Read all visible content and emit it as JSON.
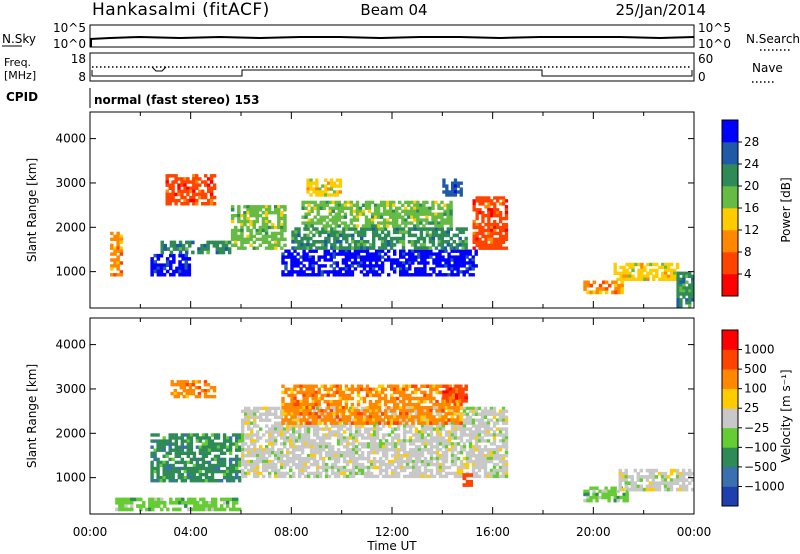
{
  "header": {
    "station": "Hankasalmi (fitACF)",
    "beam": "Beam 04",
    "date": "25/Jan/2014"
  },
  "noise_panel": {
    "left_label": "N.Sky",
    "right_label": "N.Search",
    "tick_top": "10^5",
    "tick_bottom": "10^0",
    "right_tick_top": "10^5",
    "right_tick_bottom": "10^0"
  },
  "freq_panel": {
    "label_top": "Freq.",
    "label_bottom": "[MHz]",
    "ticks_left": [
      "18",
      "8"
    ],
    "ticks_right": [
      "60",
      "0"
    ],
    "right_label": "Nave"
  },
  "cpid": {
    "label": "CPID",
    "mode": "normal (fast stereo) 153"
  },
  "power_colorbar": {
    "label": "Power [dB]",
    "ticks": [
      "28",
      "24",
      "20",
      "16",
      "12",
      "8",
      "4"
    ],
    "colors": [
      "#ff0000",
      "#ff4400",
      "#ff8800",
      "#ffcc00",
      "#66bb44",
      "#2e8b57",
      "#1e5aa8",
      "#0000ff"
    ]
  },
  "velocity_colorbar": {
    "label": "Velocity [m s⁻¹]",
    "ticks": [
      "1000",
      "500",
      "100",
      "25",
      "−25",
      "−100",
      "−500",
      "−1000"
    ],
    "colors": [
      "#1f3fae",
      "#3a6fb0",
      "#2e8b57",
      "#66cc33",
      "#c8c8c8",
      "#ffcc00",
      "#ff8800",
      "#ff4400",
      "#ff0000"
    ]
  },
  "chart_data": [
    {
      "type": "heatmap",
      "panel": "power",
      "ylabel": "Slant Range [km]",
      "yticks": [
        "4000",
        "3000",
        "2000",
        "1000"
      ],
      "ylim": [
        180,
        4600
      ],
      "xlim": [
        "00:00",
        "24:00"
      ],
      "regions": [
        {
          "t0": 0.8,
          "t1": 1.3,
          "r0": 900,
          "r1": 1900,
          "level": 2
        },
        {
          "t0": 2.4,
          "t1": 4.0,
          "r0": 900,
          "r1": 1400,
          "level": 7
        },
        {
          "t0": 2.8,
          "t1": 5.6,
          "r0": 1400,
          "r1": 1700,
          "level": 5
        },
        {
          "t0": 3.0,
          "t1": 5.0,
          "r0": 2500,
          "r1": 3200,
          "level": 1
        },
        {
          "t0": 5.6,
          "t1": 7.8,
          "r0": 1500,
          "r1": 2500,
          "level": 4
        },
        {
          "t0": 7.6,
          "t1": 15.4,
          "r0": 900,
          "r1": 1500,
          "level": 7
        },
        {
          "t0": 8.0,
          "t1": 15.0,
          "r0": 1500,
          "r1": 2000,
          "level": 5
        },
        {
          "t0": 8.4,
          "t1": 14.4,
          "r0": 2000,
          "r1": 2600,
          "level": 4
        },
        {
          "t0": 8.6,
          "t1": 10.0,
          "r0": 2700,
          "r1": 3100,
          "level": 3
        },
        {
          "t0": 14.0,
          "t1": 14.8,
          "r0": 2700,
          "r1": 3100,
          "level": 6
        },
        {
          "t0": 15.2,
          "t1": 16.6,
          "r0": 1500,
          "r1": 2700,
          "level": 1
        },
        {
          "t0": 20.8,
          "t1": 23.4,
          "r0": 800,
          "r1": 1200,
          "level": 3
        },
        {
          "t0": 19.6,
          "t1": 21.2,
          "r0": 500,
          "r1": 800,
          "level": 2
        },
        {
          "t0": 23.3,
          "t1": 24.0,
          "r0": 200,
          "r1": 1000,
          "level": 5
        }
      ]
    },
    {
      "type": "heatmap",
      "panel": "velocity",
      "ylabel": "Slant Range [km]",
      "yticks": [
        "4000",
        "3000",
        "2000",
        "1000"
      ],
      "ylim": [
        180,
        4600
      ],
      "xlim": [
        "00:00",
        "24:00"
      ],
      "xlabel": "Time UT",
      "xticks": [
        "00:00",
        "04:00",
        "08:00",
        "12:00",
        "16:00",
        "20:00",
        "00:00"
      ],
      "regions": [
        {
          "t0": 2.4,
          "t1": 6.0,
          "r0": 900,
          "r1": 2000,
          "level": 2
        },
        {
          "t0": 1.0,
          "t1": 6.0,
          "r0": 250,
          "r1": 550,
          "level": 3
        },
        {
          "t0": 6.0,
          "t1": 16.6,
          "r0": 1000,
          "r1": 2600,
          "level": 4
        },
        {
          "t0": 3.2,
          "t1": 5.0,
          "r0": 2800,
          "r1": 3200,
          "level": 6
        },
        {
          "t0": 7.6,
          "t1": 14.8,
          "r0": 2200,
          "r1": 3100,
          "level": 6
        },
        {
          "t0": 14.0,
          "t1": 15.0,
          "r0": 2700,
          "r1": 3100,
          "level": 7
        },
        {
          "t0": 14.8,
          "t1": 15.2,
          "r0": 800,
          "r1": 1100,
          "level": 7
        },
        {
          "t0": 19.6,
          "t1": 21.4,
          "r0": 450,
          "r1": 800,
          "level": 3
        },
        {
          "t0": 21.0,
          "t1": 24.0,
          "r0": 700,
          "r1": 1200,
          "level": 4
        }
      ]
    }
  ]
}
